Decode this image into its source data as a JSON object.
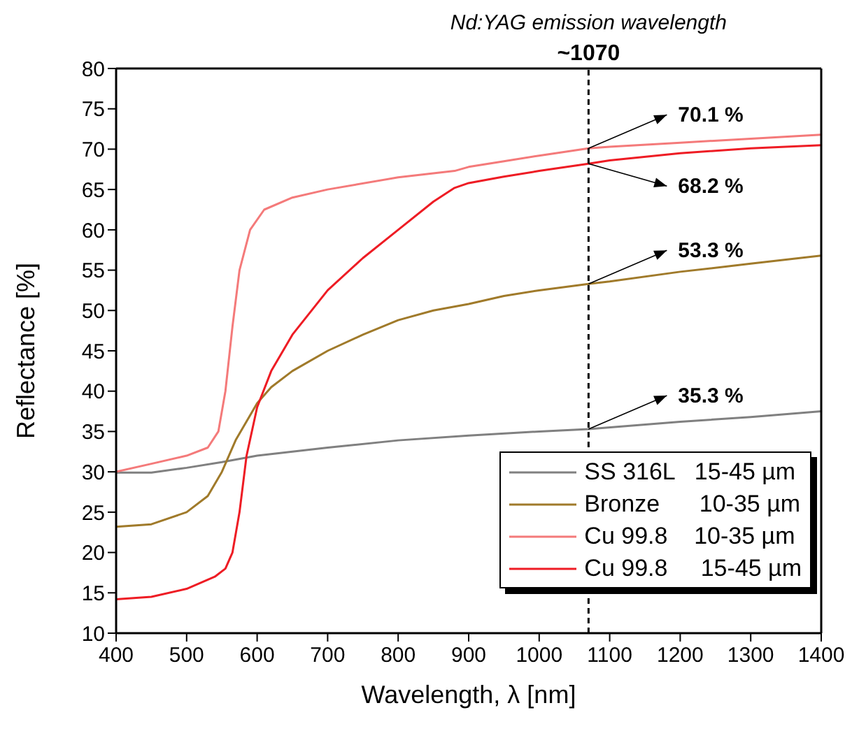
{
  "chart_data": {
    "type": "line",
    "xlabel": "Wavelength, λ [nm]",
    "ylabel": "Reflectance [%]",
    "xlim": [
      400,
      1400
    ],
    "xticks": [
      400,
      500,
      600,
      700,
      800,
      900,
      1000,
      1100,
      1200,
      1300,
      1400
    ],
    "ylim": [
      10,
      80
    ],
    "yticks": [
      10,
      15,
      20,
      25,
      30,
      35,
      40,
      45,
      50,
      55,
      60,
      65,
      70,
      75,
      80
    ],
    "grid": false,
    "legend": "bottom right",
    "marker": "none",
    "line_style": "solid",
    "series": [
      {
        "name": "SS 316L   15-45 µm",
        "color": "#808080",
        "x": [
          400,
          450,
          500,
          550,
          600,
          700,
          800,
          900,
          1000,
          1070,
          1200,
          1300,
          1400
        ],
        "values": [
          29.9,
          29.9,
          30.5,
          31.2,
          32,
          33,
          33.9,
          34.5,
          35,
          35.3,
          36.2,
          36.8,
          37.5
        ],
        "value_labels": [
          null,
          null,
          null,
          null,
          null,
          null,
          null,
          null,
          null,
          "35.3 %",
          null,
          null,
          null
        ]
      },
      {
        "name": "Bronze      10-35 µm",
        "color": "#a07a2a",
        "x": [
          400,
          450,
          500,
          530,
          550,
          570,
          600,
          620,
          650,
          700,
          750,
          800,
          850,
          900,
          950,
          1000,
          1070,
          1100,
          1200,
          1300,
          1400
        ],
        "values": [
          23.2,
          23.5,
          25,
          27,
          30,
          34,
          38.5,
          40.5,
          42.5,
          45,
          47,
          48.8,
          50,
          50.8,
          51.8,
          52.5,
          53.3,
          53.6,
          54.8,
          55.8,
          56.8
        ],
        "value_labels": [
          null,
          null,
          null,
          null,
          null,
          null,
          null,
          null,
          null,
          null,
          null,
          null,
          null,
          null,
          null,
          null,
          "53.3 %",
          null,
          null,
          null,
          null
        ]
      },
      {
        "name": "Cu 99.8    10-35 µm",
        "color": "#f47a7a",
        "x": [
          400,
          450,
          500,
          530,
          545,
          555,
          565,
          575,
          590,
          610,
          650,
          700,
          800,
          880,
          900,
          950,
          1000,
          1070,
          1100,
          1200,
          1300,
          1400
        ],
        "values": [
          30,
          31,
          32,
          33,
          35,
          40,
          48,
          55,
          60,
          62.5,
          64,
          65,
          66.5,
          67.3,
          67.8,
          68.5,
          69.2,
          70.1,
          70.3,
          70.8,
          71.3,
          71.8
        ],
        "value_labels": [
          null,
          null,
          null,
          null,
          null,
          null,
          null,
          null,
          null,
          null,
          null,
          null,
          null,
          null,
          null,
          null,
          null,
          "70.1 %",
          null,
          null,
          null,
          null
        ]
      },
      {
        "name": "Cu 99.8     15-45 µm",
        "color": "#ee1c24",
        "x": [
          400,
          450,
          500,
          540,
          555,
          565,
          575,
          585,
          600,
          620,
          650,
          700,
          750,
          800,
          850,
          880,
          900,
          950,
          1000,
          1070,
          1100,
          1200,
          1300,
          1400
        ],
        "values": [
          14.2,
          14.5,
          15.5,
          17,
          18,
          20,
          25,
          32,
          38,
          42.5,
          47,
          52.5,
          56.5,
          60,
          63.5,
          65.2,
          65.8,
          66.6,
          67.3,
          68.2,
          68.6,
          69.5,
          70.1,
          70.5
        ],
        "value_labels": [
          null,
          null,
          null,
          null,
          null,
          null,
          null,
          null,
          null,
          null,
          null,
          null,
          null,
          null,
          null,
          null,
          null,
          null,
          null,
          "68.2 %",
          null,
          null,
          null,
          null
        ]
      }
    ],
    "ref_lines": [
      {
        "axis": "x",
        "value": 1070,
        "label": "~1070",
        "line_style": "dashed",
        "color": "#000000"
      }
    ],
    "annotations": [
      "Nd:YAG emission wavelength"
    ]
  }
}
